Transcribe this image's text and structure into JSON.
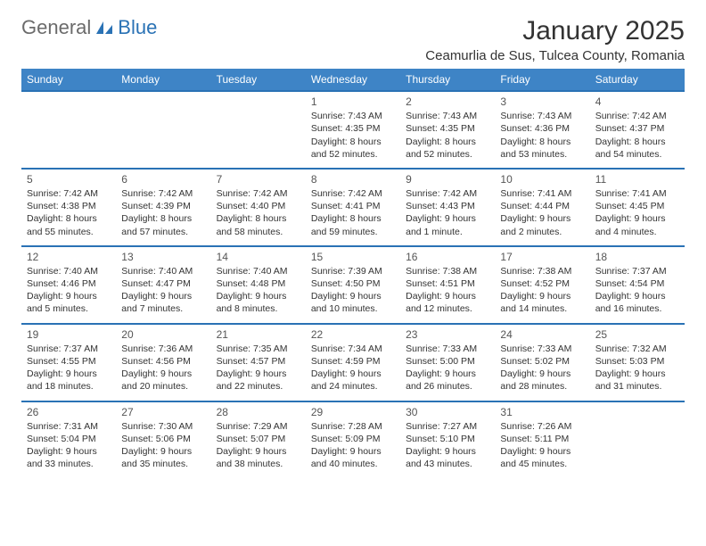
{
  "logo": {
    "general": "General",
    "blue": "Blue"
  },
  "title": "January 2025",
  "location": "Ceamurlia de Sus, Tulcea County, Romania",
  "weekdays": [
    "Sunday",
    "Monday",
    "Tuesday",
    "Wednesday",
    "Thursday",
    "Friday",
    "Saturday"
  ],
  "header_bg": "#3e84c6",
  "border_color": "#2a72b5",
  "weeks": [
    [
      null,
      null,
      null,
      {
        "n": "1",
        "sr": "Sunrise: 7:43 AM",
        "ss": "Sunset: 4:35 PM",
        "d1": "Daylight: 8 hours",
        "d2": "and 52 minutes."
      },
      {
        "n": "2",
        "sr": "Sunrise: 7:43 AM",
        "ss": "Sunset: 4:35 PM",
        "d1": "Daylight: 8 hours",
        "d2": "and 52 minutes."
      },
      {
        "n": "3",
        "sr": "Sunrise: 7:43 AM",
        "ss": "Sunset: 4:36 PM",
        "d1": "Daylight: 8 hours",
        "d2": "and 53 minutes."
      },
      {
        "n": "4",
        "sr": "Sunrise: 7:42 AM",
        "ss": "Sunset: 4:37 PM",
        "d1": "Daylight: 8 hours",
        "d2": "and 54 minutes."
      }
    ],
    [
      {
        "n": "5",
        "sr": "Sunrise: 7:42 AM",
        "ss": "Sunset: 4:38 PM",
        "d1": "Daylight: 8 hours",
        "d2": "and 55 minutes."
      },
      {
        "n": "6",
        "sr": "Sunrise: 7:42 AM",
        "ss": "Sunset: 4:39 PM",
        "d1": "Daylight: 8 hours",
        "d2": "and 57 minutes."
      },
      {
        "n": "7",
        "sr": "Sunrise: 7:42 AM",
        "ss": "Sunset: 4:40 PM",
        "d1": "Daylight: 8 hours",
        "d2": "and 58 minutes."
      },
      {
        "n": "8",
        "sr": "Sunrise: 7:42 AM",
        "ss": "Sunset: 4:41 PM",
        "d1": "Daylight: 8 hours",
        "d2": "and 59 minutes."
      },
      {
        "n": "9",
        "sr": "Sunrise: 7:42 AM",
        "ss": "Sunset: 4:43 PM",
        "d1": "Daylight: 9 hours",
        "d2": "and 1 minute."
      },
      {
        "n": "10",
        "sr": "Sunrise: 7:41 AM",
        "ss": "Sunset: 4:44 PM",
        "d1": "Daylight: 9 hours",
        "d2": "and 2 minutes."
      },
      {
        "n": "11",
        "sr": "Sunrise: 7:41 AM",
        "ss": "Sunset: 4:45 PM",
        "d1": "Daylight: 9 hours",
        "d2": "and 4 minutes."
      }
    ],
    [
      {
        "n": "12",
        "sr": "Sunrise: 7:40 AM",
        "ss": "Sunset: 4:46 PM",
        "d1": "Daylight: 9 hours",
        "d2": "and 5 minutes."
      },
      {
        "n": "13",
        "sr": "Sunrise: 7:40 AM",
        "ss": "Sunset: 4:47 PM",
        "d1": "Daylight: 9 hours",
        "d2": "and 7 minutes."
      },
      {
        "n": "14",
        "sr": "Sunrise: 7:40 AM",
        "ss": "Sunset: 4:48 PM",
        "d1": "Daylight: 9 hours",
        "d2": "and 8 minutes."
      },
      {
        "n": "15",
        "sr": "Sunrise: 7:39 AM",
        "ss": "Sunset: 4:50 PM",
        "d1": "Daylight: 9 hours",
        "d2": "and 10 minutes."
      },
      {
        "n": "16",
        "sr": "Sunrise: 7:38 AM",
        "ss": "Sunset: 4:51 PM",
        "d1": "Daylight: 9 hours",
        "d2": "and 12 minutes."
      },
      {
        "n": "17",
        "sr": "Sunrise: 7:38 AM",
        "ss": "Sunset: 4:52 PM",
        "d1": "Daylight: 9 hours",
        "d2": "and 14 minutes."
      },
      {
        "n": "18",
        "sr": "Sunrise: 7:37 AM",
        "ss": "Sunset: 4:54 PM",
        "d1": "Daylight: 9 hours",
        "d2": "and 16 minutes."
      }
    ],
    [
      {
        "n": "19",
        "sr": "Sunrise: 7:37 AM",
        "ss": "Sunset: 4:55 PM",
        "d1": "Daylight: 9 hours",
        "d2": "and 18 minutes."
      },
      {
        "n": "20",
        "sr": "Sunrise: 7:36 AM",
        "ss": "Sunset: 4:56 PM",
        "d1": "Daylight: 9 hours",
        "d2": "and 20 minutes."
      },
      {
        "n": "21",
        "sr": "Sunrise: 7:35 AM",
        "ss": "Sunset: 4:57 PM",
        "d1": "Daylight: 9 hours",
        "d2": "and 22 minutes."
      },
      {
        "n": "22",
        "sr": "Sunrise: 7:34 AM",
        "ss": "Sunset: 4:59 PM",
        "d1": "Daylight: 9 hours",
        "d2": "and 24 minutes."
      },
      {
        "n": "23",
        "sr": "Sunrise: 7:33 AM",
        "ss": "Sunset: 5:00 PM",
        "d1": "Daylight: 9 hours",
        "d2": "and 26 minutes."
      },
      {
        "n": "24",
        "sr": "Sunrise: 7:33 AM",
        "ss": "Sunset: 5:02 PM",
        "d1": "Daylight: 9 hours",
        "d2": "and 28 minutes."
      },
      {
        "n": "25",
        "sr": "Sunrise: 7:32 AM",
        "ss": "Sunset: 5:03 PM",
        "d1": "Daylight: 9 hours",
        "d2": "and 31 minutes."
      }
    ],
    [
      {
        "n": "26",
        "sr": "Sunrise: 7:31 AM",
        "ss": "Sunset: 5:04 PM",
        "d1": "Daylight: 9 hours",
        "d2": "and 33 minutes."
      },
      {
        "n": "27",
        "sr": "Sunrise: 7:30 AM",
        "ss": "Sunset: 5:06 PM",
        "d1": "Daylight: 9 hours",
        "d2": "and 35 minutes."
      },
      {
        "n": "28",
        "sr": "Sunrise: 7:29 AM",
        "ss": "Sunset: 5:07 PM",
        "d1": "Daylight: 9 hours",
        "d2": "and 38 minutes."
      },
      {
        "n": "29",
        "sr": "Sunrise: 7:28 AM",
        "ss": "Sunset: 5:09 PM",
        "d1": "Daylight: 9 hours",
        "d2": "and 40 minutes."
      },
      {
        "n": "30",
        "sr": "Sunrise: 7:27 AM",
        "ss": "Sunset: 5:10 PM",
        "d1": "Daylight: 9 hours",
        "d2": "and 43 minutes."
      },
      {
        "n": "31",
        "sr": "Sunrise: 7:26 AM",
        "ss": "Sunset: 5:11 PM",
        "d1": "Daylight: 9 hours",
        "d2": "and 45 minutes."
      },
      null
    ]
  ]
}
